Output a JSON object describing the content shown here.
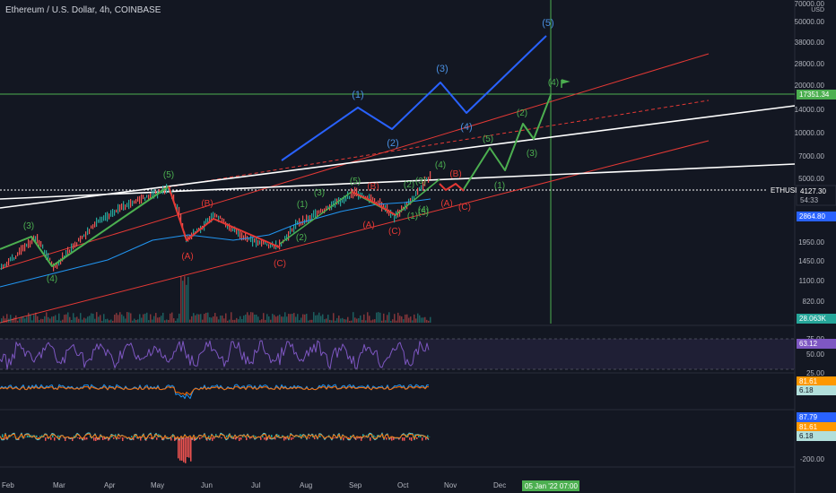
{
  "header": {
    "title": "Ethereum / U.S. Dollar, 4h, COINBASE"
  },
  "colors": {
    "bg": "#131722",
    "green": "#4caf50",
    "red": "#e53935",
    "blue": "#2962ff",
    "white": "#ffffff",
    "grid": "#1e222d",
    "vline": "#4caf50",
    "ema": "#2196f3",
    "rsi": "#7e57c2"
  },
  "chart_data": [
    {
      "type": "line",
      "id": "price",
      "axis": {
        "scale": "log",
        "ticks": [
          "70000.00",
          "50000.00",
          "38000.00",
          "28000.00",
          "20000.00",
          "14000.00",
          "10000.00",
          "7000.00",
          "5000.00",
          "2864.80",
          "1950.00",
          "1450.00",
          "1100.00",
          "820.00"
        ],
        "unit_label": "USD"
      },
      "x_ticks": [
        "Feb",
        "Mar",
        "Apr",
        "May",
        "Jun",
        "Jul",
        "Aug",
        "Sep",
        "Oct",
        "Nov",
        "Dec"
      ],
      "price_label": {
        "symbol": "ETHUSD",
        "value": "4127.30",
        "countdown": "54:33"
      },
      "ema_label": "2864.80",
      "hline_label": "17351.34",
      "volume_label": "28.063K",
      "time_label": "05 Jan '22   07:00",
      "wave_labels": {
        "green": [
          "(3)",
          "(4)",
          "(5)",
          "(1)",
          "(2)",
          "(3)",
          "(4)",
          "(5)",
          "(1)",
          "(2)",
          "(3)",
          "(4)",
          "(5)",
          "(1)",
          "(2)",
          "(3)",
          "(4)",
          "(5)"
        ],
        "red": [
          "(A)",
          "(B)",
          "(C)",
          "(A)",
          "(B)",
          "(C)",
          "(A)",
          "(B)",
          "(C)"
        ],
        "blue": [
          "(1)",
          "(2)",
          "(3)",
          "(4)",
          "(5)"
        ]
      }
    },
    {
      "type": "line",
      "id": "rsi",
      "ticks": [
        "75.00",
        "50.00",
        "25.00"
      ],
      "value_label": "63.12"
    },
    {
      "type": "line",
      "id": "osc1",
      "labels": [
        "81.61",
        "6.18"
      ]
    },
    {
      "type": "line",
      "id": "osc2",
      "labels": [
        "87.79",
        "81.61",
        "6.18"
      ],
      "ticks": [
        "-200.00"
      ]
    }
  ]
}
